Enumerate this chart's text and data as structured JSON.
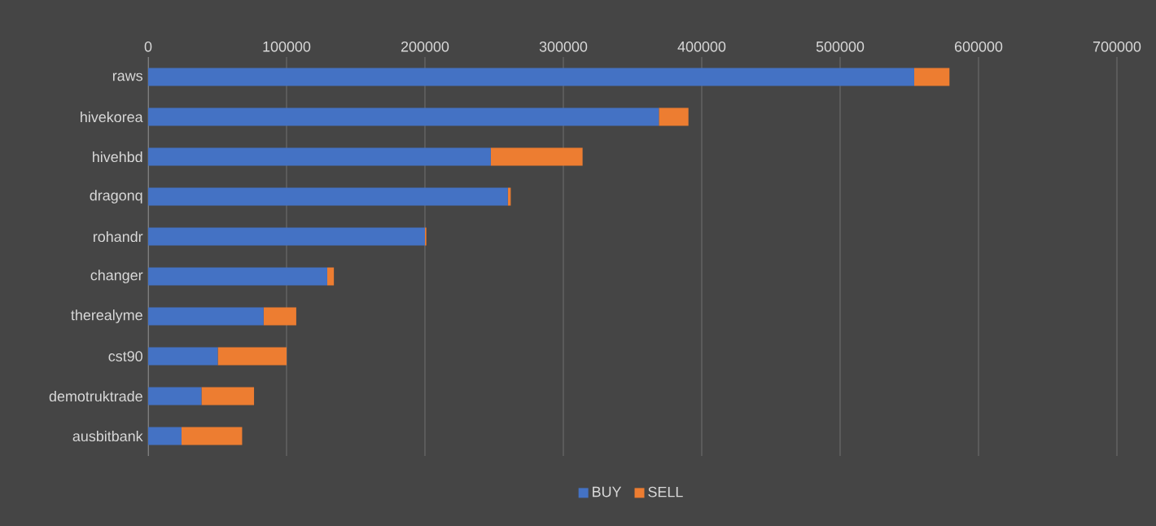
{
  "chart_data": {
    "type": "bar",
    "orientation": "horizontal",
    "stacked": true,
    "categories": [
      "raws",
      "hivekorea",
      "hivehbd",
      "dragonq",
      "rohandr",
      "changer",
      "therealyme",
      "cst90",
      "demotruktrade",
      "ausbitbank"
    ],
    "series": [
      {
        "name": "BUY",
        "color": "#4472c4",
        "values": [
          553500,
          369000,
          247600,
          259900,
          200000,
          129400,
          83400,
          50300,
          38500,
          24100
        ]
      },
      {
        "name": "SELL",
        "color": "#ed7d31",
        "values": [
          25500,
          21400,
          66300,
          2100,
          1000,
          4800,
          23600,
          49700,
          38000,
          43800
        ]
      }
    ],
    "xlim": [
      0,
      700000
    ],
    "xticks": [
      0,
      100000,
      200000,
      300000,
      400000,
      500000,
      600000,
      700000
    ],
    "grid": "x",
    "legend": "bottom"
  }
}
